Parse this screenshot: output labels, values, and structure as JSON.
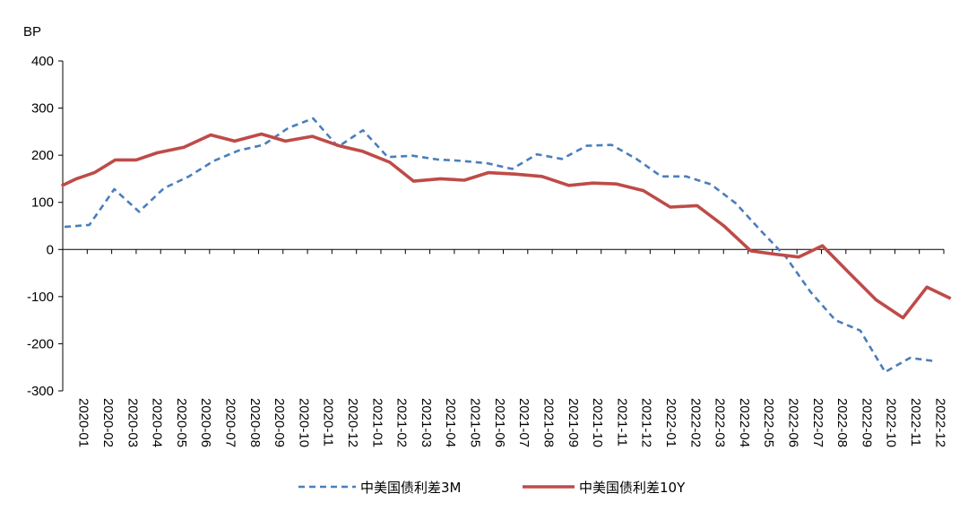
{
  "chart_data": {
    "type": "line",
    "ylabel": "BP",
    "ylim": [
      -300,
      400
    ],
    "yticks": [
      400,
      300,
      200,
      100,
      0,
      -100,
      -200,
      -300
    ],
    "grid": false,
    "legend_position": "bottom",
    "x": [
      "2020-01",
      "2020-02",
      "2020-03",
      "2020-04",
      "2020-05",
      "2020-06",
      "2020-07",
      "2020-08",
      "2020-09",
      "2020-10",
      "2020-11",
      "2020-12",
      "2021-01",
      "2021-02",
      "2021-03",
      "2021-04",
      "2021-05",
      "2021-06",
      "2021-07",
      "2021-08",
      "2021-09",
      "2021-10",
      "2021-11",
      "2021-12",
      "2022-01",
      "2022-02",
      "2022-03",
      "2022-04",
      "2022-05",
      "2022-06",
      "2022-07",
      "2022-08",
      "2022-09",
      "2022-10",
      "2022-11",
      "2022-12"
    ],
    "series": [
      {
        "name": "中美国债利差3M",
        "color": "#4a7ebb",
        "style": "dashed",
        "x": [
          2020.0,
          2020.0833,
          2020.1667,
          2020.25,
          2020.3333,
          2020.4167,
          2020.5,
          2020.5833,
          2020.6667,
          2020.75,
          2020.8333,
          2020.9167,
          2021.0,
          2021.0833,
          2021.1667,
          2021.25,
          2021.3333,
          2021.4167,
          2021.5,
          2021.5833,
          2021.6667,
          2021.75,
          2021.8333,
          2021.9167,
          2022.0,
          2022.0833,
          2022.1667,
          2022.25,
          2022.3333,
          2022.4167,
          2022.5,
          2022.5833,
          2022.6667,
          2022.75,
          2022.8333,
          2022.9167
        ],
        "values": [
          48,
          52,
          128,
          80,
          130,
          155,
          188,
          210,
          222,
          258,
          278,
          218,
          253,
          196,
          199,
          191,
          188,
          183,
          171,
          202,
          192,
          220,
          222,
          192,
          155,
          155,
          138,
          98,
          40,
          -15,
          -90,
          -150,
          -172,
          -260,
          -230,
          -237
        ]
      },
      {
        "name": "中美国债利差10Y",
        "color": "#be4b48",
        "style": "solid",
        "x": [
          2019.99,
          2020.04,
          2020.1,
          2020.17,
          2020.24,
          2020.31,
          2020.4,
          2020.49,
          2020.57,
          2020.66,
          2020.74,
          2020.83,
          2020.92,
          2021.0,
          2021.09,
          2021.17,
          2021.26,
          2021.34,
          2021.42,
          2021.51,
          2021.6,
          2021.69,
          2021.77,
          2021.85,
          2021.94,
          2022.03,
          2022.12,
          2022.21,
          2022.3,
          2022.38,
          2022.46,
          2022.54,
          2022.63,
          2022.72,
          2022.81,
          2022.89,
          2022.97
        ],
        "values": [
          135,
          150,
          163,
          190,
          190,
          205,
          217,
          243,
          230,
          245,
          230,
          240,
          220,
          208,
          185,
          145,
          150,
          147,
          163,
          160,
          155,
          136,
          141,
          139,
          125,
          90,
          93,
          50,
          -3,
          -10,
          -16,
          8,
          -50,
          -107,
          -145,
          -80,
          -104
        ]
      }
    ]
  }
}
